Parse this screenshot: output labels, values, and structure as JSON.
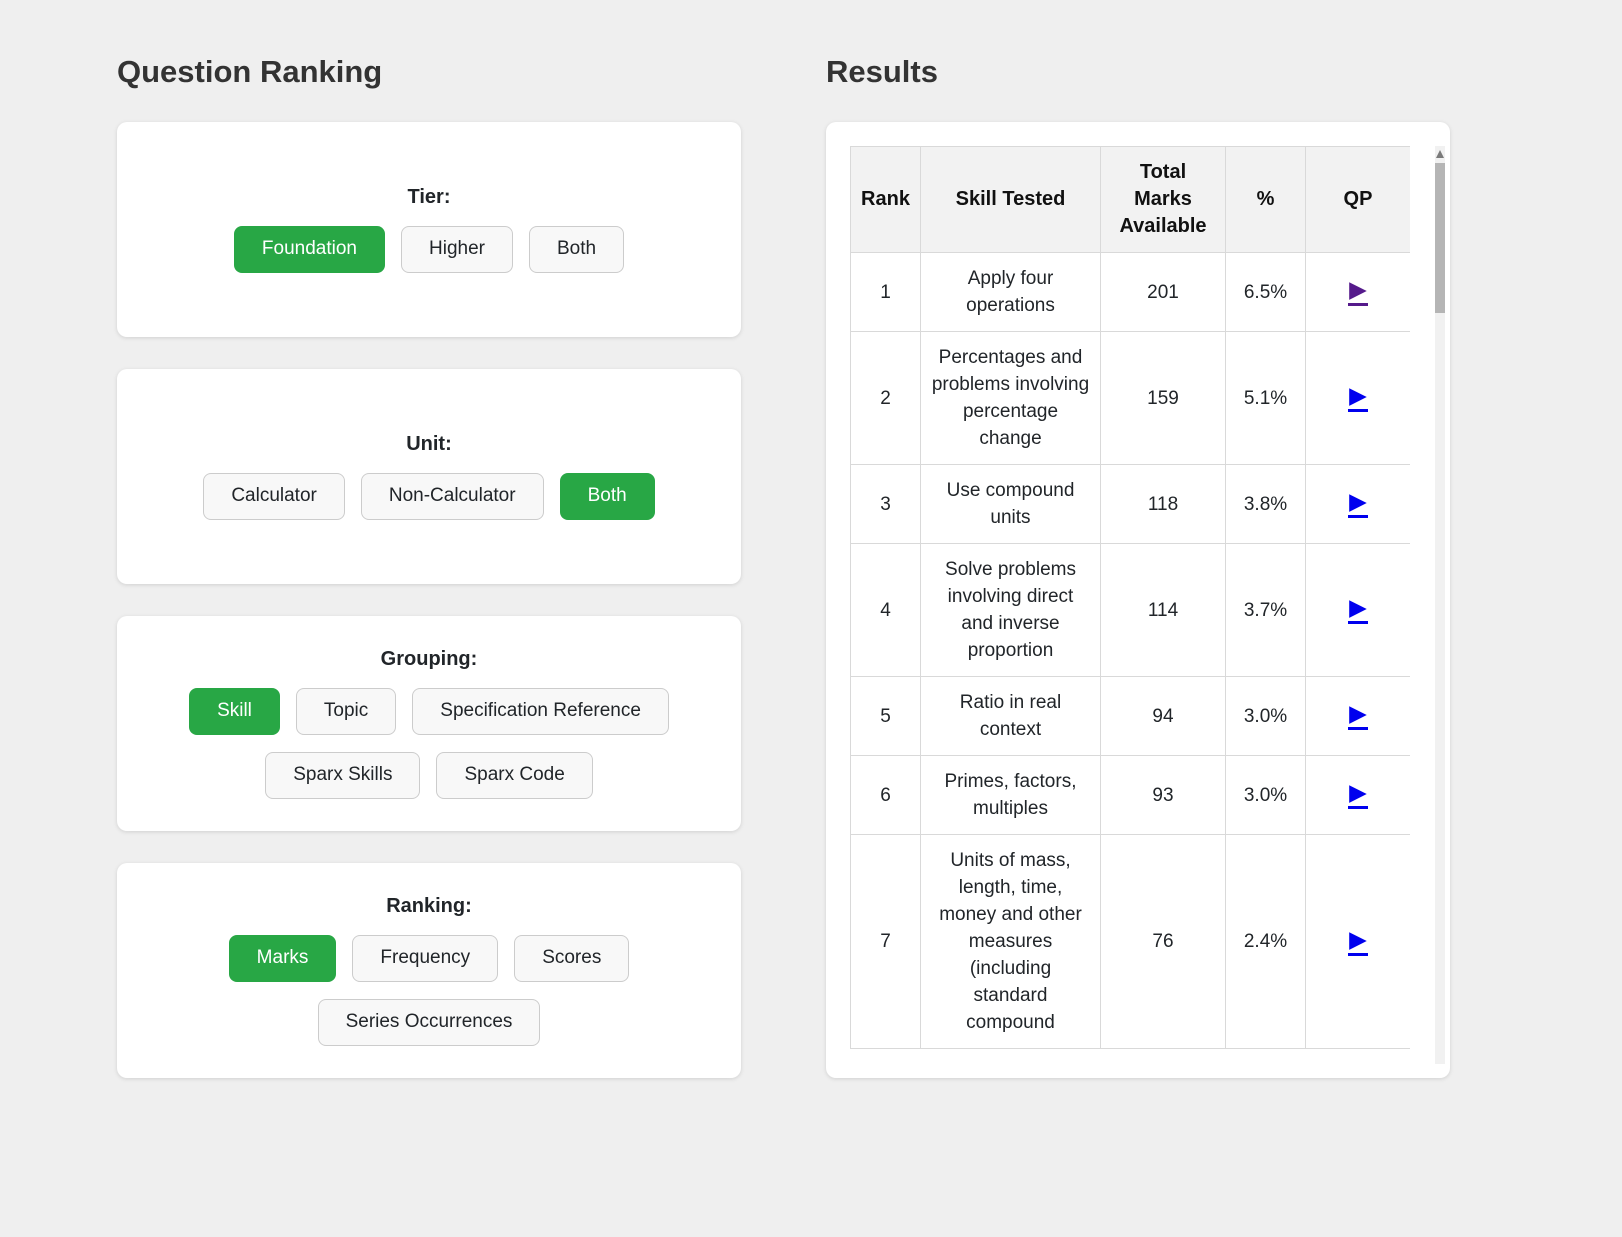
{
  "left": {
    "title": "Question Ranking"
  },
  "right": {
    "title": "Results"
  },
  "colors": {
    "selected_button_green": "#28a745",
    "qp_link_blue": "#0000ee",
    "qp_link_visited_purple": "#551a8b"
  },
  "filters": [
    {
      "label": "Tier:",
      "rows": [
        [
          {
            "label": "Foundation",
            "selected": true
          },
          {
            "label": "Higher",
            "selected": false
          },
          {
            "label": "Both",
            "selected": false
          }
        ]
      ]
    },
    {
      "label": "Unit:",
      "rows": [
        [
          {
            "label": "Calculator",
            "selected": false
          },
          {
            "label": "Non-Calculator",
            "selected": false
          },
          {
            "label": "Both",
            "selected": true
          }
        ]
      ]
    },
    {
      "label": "Grouping:",
      "rows": [
        [
          {
            "label": "Skill",
            "selected": true
          },
          {
            "label": "Topic",
            "selected": false
          },
          {
            "label": "Specification Reference",
            "selected": false
          }
        ],
        [
          {
            "label": "Sparx Skills",
            "selected": false
          },
          {
            "label": "Sparx Code",
            "selected": false
          }
        ]
      ]
    },
    {
      "label": "Ranking:",
      "rows": [
        [
          {
            "label": "Marks",
            "selected": true
          },
          {
            "label": "Frequency",
            "selected": false
          },
          {
            "label": "Scores",
            "selected": false
          }
        ],
        [
          {
            "label": "Series Occurrences",
            "selected": false
          }
        ]
      ]
    }
  ],
  "results_table": {
    "columns": [
      "Rank",
      "Skill Tested",
      "Total Marks Available",
      "%",
      "QP"
    ],
    "play_glyph": "▶",
    "rows": [
      {
        "rank": "1",
        "skill": "Apply four operations",
        "marks": "201",
        "percent": "6.5%",
        "qp_state": "visited"
      },
      {
        "rank": "2",
        "skill": "Percentages and problems involving percentage change",
        "marks": "159",
        "percent": "5.1%",
        "qp_state": "link"
      },
      {
        "rank": "3",
        "skill": "Use compound units",
        "marks": "118",
        "percent": "3.8%",
        "qp_state": "link"
      },
      {
        "rank": "4",
        "skill": "Solve problems involving direct and inverse proportion",
        "marks": "114",
        "percent": "3.7%",
        "qp_state": "link"
      },
      {
        "rank": "5",
        "skill": "Ratio in real context",
        "marks": "94",
        "percent": "3.0%",
        "qp_state": "link"
      },
      {
        "rank": "6",
        "skill": "Primes, factors, multiples",
        "marks": "93",
        "percent": "3.0%",
        "qp_state": "link"
      },
      {
        "rank": "7",
        "skill": "Units of mass, length, time, money and other measures (including standard compound",
        "marks": "76",
        "percent": "2.4%",
        "qp_state": "link"
      }
    ]
  }
}
